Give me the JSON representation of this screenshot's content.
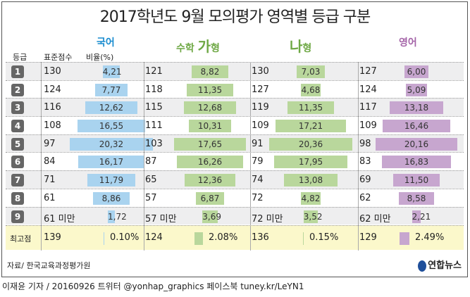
{
  "title": "2017학년도 9월 모의평가 영역별 등급 구분",
  "subjects": [
    {
      "name": "국어",
      "prefix": "",
      "big": "",
      "color": "#1a8ccf",
      "bar_color": "#a9d3ef"
    },
    {
      "name": "형",
      "prefix": "수학 ",
      "big": "가",
      "color": "#6ea844",
      "bar_color": "#b9d79c"
    },
    {
      "name": "형",
      "prefix": "",
      "big": "나",
      "color": "#6ea844",
      "bar_color": "#b9d79c"
    },
    {
      "name": "영어",
      "prefix": "",
      "big": "",
      "color": "#a464a8",
      "bar_color": "#c7a6cf"
    }
  ],
  "headers": {
    "grade": "등급",
    "score": "표준점수",
    "ratio": "비율(%)"
  },
  "chart_data": {
    "type": "table",
    "title": "2017학년도 9월 모의평가 영역별 등급 구분",
    "grades": [
      "1",
      "2",
      "3",
      "4",
      "5",
      "6",
      "7",
      "8",
      "9"
    ],
    "series": [
      {
        "name": "국어",
        "scores": [
          "130",
          "124",
          "116",
          "108",
          "97",
          "84",
          "71",
          "61",
          "61 미만"
        ],
        "values": [
          4.21,
          7.77,
          12.62,
          16.55,
          20.32,
          16.17,
          11.79,
          8.86,
          1.72
        ]
      },
      {
        "name": "수학 가형",
        "scores": [
          "121",
          "118",
          "115",
          "111",
          "103",
          "87",
          "65",
          "57",
          "57 미만"
        ],
        "values": [
          8.82,
          11.35,
          12.68,
          10.31,
          17.65,
          16.26,
          12.36,
          6.87,
          3.69
        ]
      },
      {
        "name": "수학 나형",
        "scores": [
          "130",
          "127",
          "119",
          "109",
          "91",
          "79",
          "74",
          "72",
          "72 미만"
        ],
        "values": [
          7.03,
          4.68,
          11.35,
          17.21,
          20.36,
          17.95,
          13.08,
          4.82,
          3.52
        ]
      },
      {
        "name": "영어",
        "scores": [
          "127",
          "124",
          "117",
          "109",
          "98",
          "83",
          "69",
          "62",
          "62 미만"
        ],
        "values": [
          6.0,
          5.09,
          13.18,
          16.46,
          20.16,
          16.83,
          11.5,
          8.58,
          2.21
        ]
      }
    ]
  },
  "best": {
    "label": "최고점",
    "items": [
      {
        "score": "139",
        "pct": "0.10%",
        "value": 0.1
      },
      {
        "score": "124",
        "pct": "2.08%",
        "value": 2.08
      },
      {
        "score": "136",
        "pct": "0.15%",
        "value": 0.15
      },
      {
        "score": "129",
        "pct": "2.49%",
        "value": 2.49
      }
    ]
  },
  "source": "자료/ 한국교육과정평가원",
  "logo": "연합뉴스",
  "byline": "이재윤 기자 / 20160926  트위터 @yonhap_graphics  페이스북 tuney.kr/LeYN1"
}
